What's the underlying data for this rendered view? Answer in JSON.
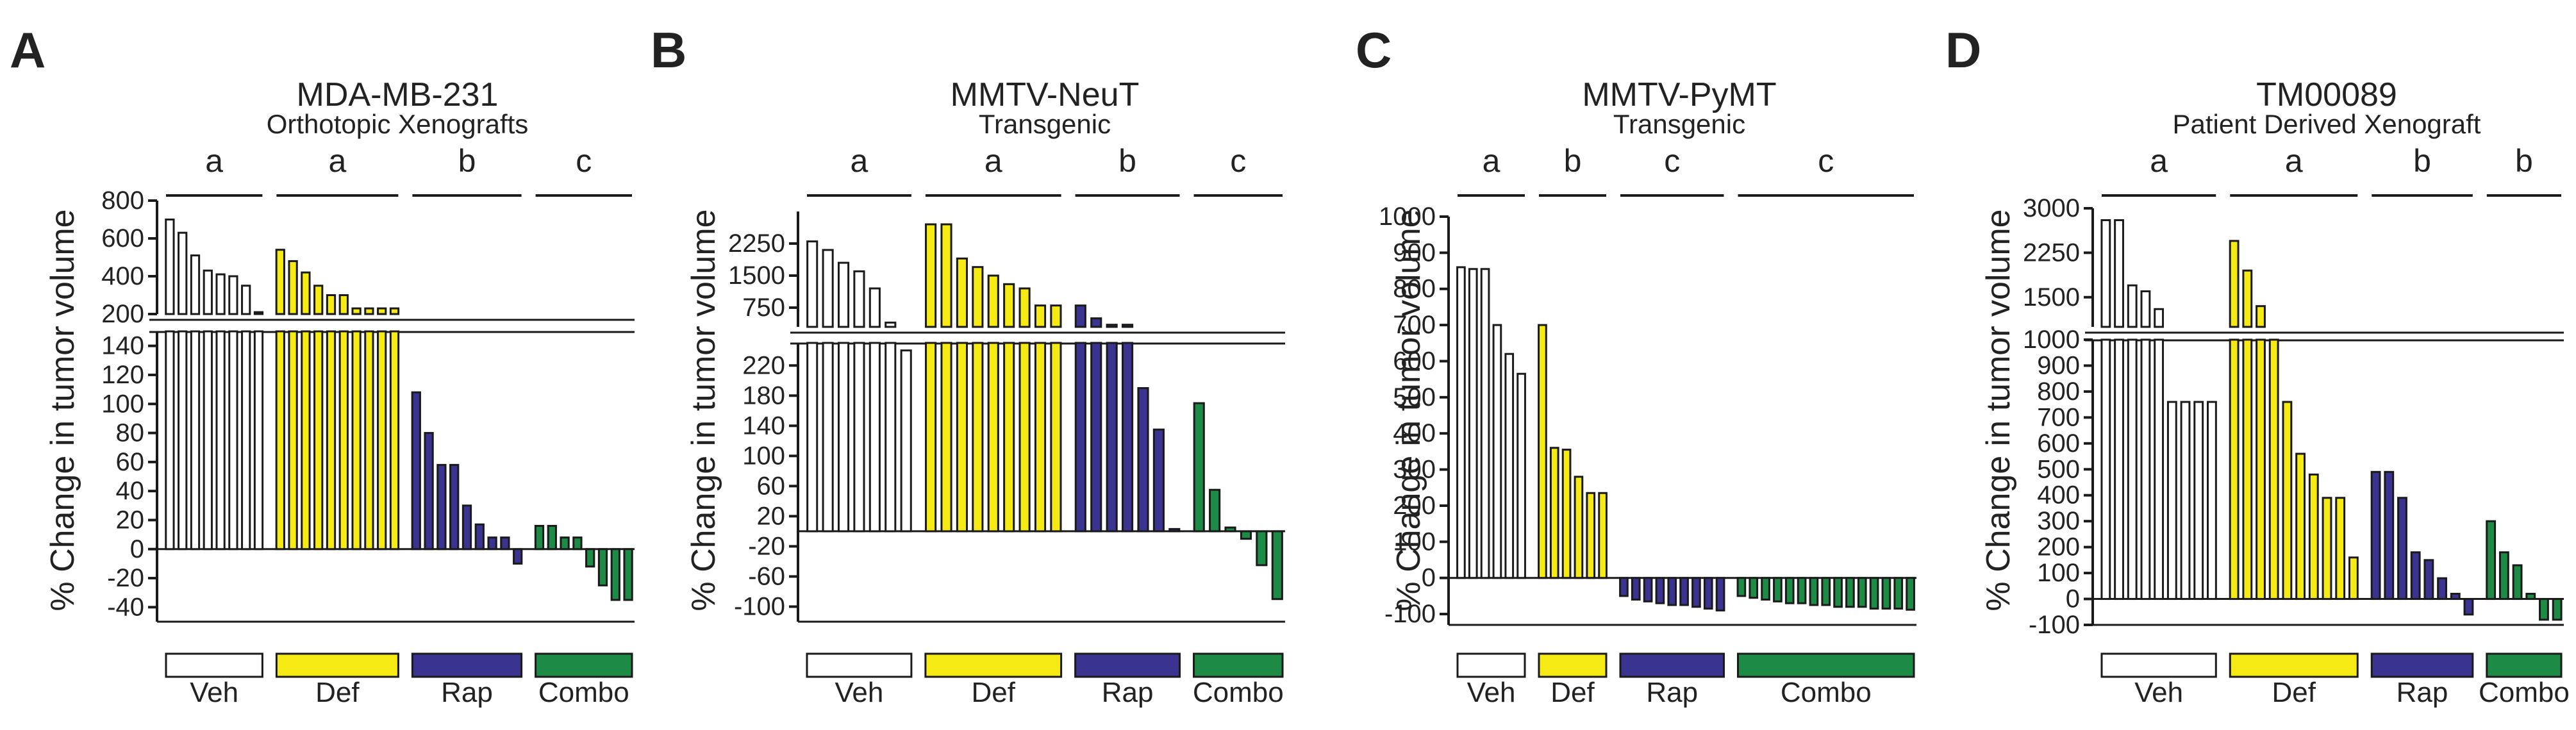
{
  "figure": {
    "y_axis_label": "% Change in tumor volume",
    "colors": {
      "veh": "#ffffff",
      "def": "#f5ea14",
      "rap": "#3a3390",
      "combo": "#1d8a45",
      "stroke": "#1a1a1a"
    }
  },
  "chart_data": [
    {
      "type": "bar",
      "panel_letter": "A",
      "title": "MDA-MB-231",
      "subtitle": "Orthotopic Xenografts",
      "ylabel": "% Change in tumor volume",
      "upper_axis": {
        "ylim": [
          200,
          800
        ],
        "ticks": [
          200,
          400,
          600,
          800
        ]
      },
      "lower_axis": {
        "ylim": [
          -50,
          150
        ],
        "ticks": [
          -40,
          -20,
          0,
          20,
          40,
          60,
          80,
          100,
          120,
          140
        ]
      },
      "groups": [
        {
          "name": "Veh",
          "color": "veh",
          "letter": "a",
          "values": [
            700,
            630,
            510,
            430,
            410,
            400,
            350,
            210
          ]
        },
        {
          "name": "Def",
          "color": "def",
          "letter": "a",
          "values": [
            540,
            480,
            420,
            350,
            300,
            300,
            230,
            230,
            230,
            230
          ]
        },
        {
          "name": "Rap",
          "color": "rap",
          "letter": "b",
          "values": [
            108,
            80,
            58,
            58,
            30,
            17,
            8,
            8,
            -10
          ]
        },
        {
          "name": "Combo",
          "color": "combo",
          "letter": "c",
          "values": [
            16,
            16,
            8,
            8,
            -12,
            -25,
            -35,
            -35
          ]
        }
      ]
    },
    {
      "type": "bar",
      "panel_letter": "B",
      "title": "MMTV-NeuT",
      "subtitle": "Transgenic",
      "ylabel": "% Change in tumor volume",
      "upper_axis": {
        "ylim": [
          300,
          3000
        ],
        "ticks": [
          750,
          1500,
          2250
        ]
      },
      "lower_axis": {
        "ylim": [
          -120,
          250
        ],
        "ticks": [
          -100,
          -60,
          -20,
          20,
          60,
          100,
          140,
          180,
          220
        ]
      },
      "groups": [
        {
          "name": "Veh",
          "color": "veh",
          "letter": "a",
          "values": [
            2300,
            2100,
            1800,
            1600,
            1200,
            400,
            240
          ]
        },
        {
          "name": "Def",
          "color": "def",
          "letter": "a",
          "values": [
            2700,
            2700,
            1900,
            1700,
            1500,
            1300,
            1200,
            800,
            800
          ]
        },
        {
          "name": "Rap",
          "color": "rap",
          "letter": "b",
          "values": [
            800,
            500,
            350,
            350,
            190,
            135,
            3
          ]
        },
        {
          "name": "Combo",
          "color": "combo",
          "letter": "c",
          "values": [
            170,
            55,
            5,
            -10,
            -45,
            -90
          ]
        }
      ]
    },
    {
      "type": "bar",
      "panel_letter": "C",
      "title": "MMTV-PyMT",
      "subtitle": "Transgenic",
      "ylabel": "% Change in tumor volume",
      "axis": {
        "ylim": [
          -130,
          1000
        ],
        "ticks": [
          -100,
          0,
          100,
          200,
          300,
          400,
          500,
          600,
          700,
          800,
          900,
          1000
        ]
      },
      "groups": [
        {
          "name": "Veh",
          "color": "veh",
          "letter": "a",
          "values": [
            860,
            855,
            855,
            700,
            620,
            565
          ]
        },
        {
          "name": "Def",
          "color": "def",
          "letter": "b",
          "values": [
            700,
            360,
            355,
            280,
            235,
            235
          ]
        },
        {
          "name": "Rap",
          "color": "rap",
          "letter": "c",
          "values": [
            -50,
            -60,
            -65,
            -70,
            -75,
            -75,
            -80,
            -85,
            -90
          ]
        },
        {
          "name": "Combo",
          "color": "combo",
          "letter": "c",
          "values": [
            -50,
            -55,
            -60,
            -65,
            -70,
            -70,
            -75,
            -75,
            -80,
            -80,
            -80,
            -85,
            -85,
            -85,
            -88
          ]
        }
      ]
    },
    {
      "type": "bar",
      "panel_letter": "D",
      "title": "TM00089",
      "subtitle": "Patient Derived Xenograft",
      "ylabel": "% Change in tumor volume",
      "upper_axis": {
        "ylim": [
          1000,
          3000
        ],
        "ticks": [
          1500,
          2250,
          3000
        ]
      },
      "lower_axis": {
        "ylim": [
          -100,
          1000
        ],
        "ticks": [
          -100,
          0,
          100,
          200,
          300,
          400,
          500,
          600,
          700,
          800,
          900,
          1000
        ]
      },
      "groups": [
        {
          "name": "Veh",
          "color": "veh",
          "letter": "a",
          "values": [
            2800,
            2800,
            1700,
            1600,
            1300,
            760,
            760,
            760,
            760
          ]
        },
        {
          "name": "Def",
          "color": "def",
          "letter": "a",
          "values": [
            2450,
            1950,
            1350,
            1000,
            760,
            560,
            480,
            390,
            390,
            160
          ]
        },
        {
          "name": "Rap",
          "color": "rap",
          "letter": "b",
          "values": [
            490,
            490,
            390,
            180,
            150,
            80,
            20,
            -60
          ]
        },
        {
          "name": "Combo",
          "color": "combo",
          "letter": "b",
          "values": [
            300,
            180,
            130,
            20,
            -80,
            -80
          ]
        }
      ]
    }
  ]
}
